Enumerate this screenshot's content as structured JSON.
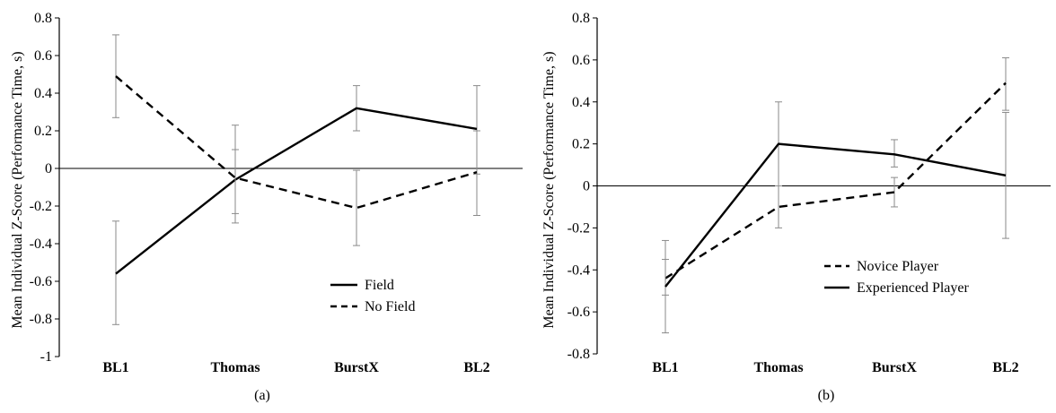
{
  "chart_data": [
    {
      "type": "line",
      "panel_label": "(a)",
      "ylabel": "Mean Individual Z-Score (Performance Time, s)",
      "categories": [
        "BL1",
        "Thomas",
        "BurstX",
        "BL2"
      ],
      "ylim": [
        -1,
        0.8
      ],
      "yticks": [
        0.8,
        0.6,
        0.4,
        0.2,
        0,
        -0.2,
        -0.4,
        -0.6,
        -0.8,
        -1
      ],
      "ytick_labels": [
        "0.8",
        "0.6",
        "0.4",
        "0.2",
        "0",
        "-0.2",
        "-0.4",
        "-0.6",
        "-0.8",
        "-1"
      ],
      "grid": false,
      "zero_line": true,
      "legend_position": "lower-right",
      "series": [
        {
          "name": "Field",
          "dash": "solid",
          "values": [
            -0.56,
            -0.06,
            0.32,
            0.21
          ],
          "err_low": [
            -0.83,
            -0.29,
            0.2,
            -0.03
          ],
          "err_high": [
            -0.28,
            0.1,
            0.44,
            0.44
          ]
        },
        {
          "name": "No Field",
          "dash": "dashed",
          "values": [
            0.49,
            -0.05,
            -0.21,
            -0.02
          ],
          "err_low": [
            0.27,
            -0.24,
            -0.41,
            -0.25
          ],
          "err_high": [
            0.71,
            0.23,
            -0.01,
            0.2
          ]
        }
      ]
    },
    {
      "type": "line",
      "panel_label": "(b)",
      "ylabel": "Mean Individual Z-Score (Performance Time, s)",
      "categories": [
        "BL1",
        "Thomas",
        "BurstX",
        "BL2"
      ],
      "ylim": [
        -0.8,
        0.8
      ],
      "yticks": [
        0.8,
        0.6,
        0.4,
        0.2,
        0,
        -0.2,
        -0.4,
        -0.6,
        -0.8
      ],
      "ytick_labels": [
        "0.8",
        "0.6",
        "0.4",
        "0.2",
        "0",
        "-0.2",
        "-0.4",
        "-0.6",
        "-0.8"
      ],
      "grid": false,
      "zero_line": true,
      "legend_position": "lower-right",
      "series": [
        {
          "name": "Novice Player",
          "dash": "dashed",
          "values": [
            -0.44,
            -0.1,
            -0.03,
            0.49
          ],
          "err_low": [
            -0.52,
            -0.2,
            -0.1,
            0.36
          ],
          "err_high": [
            -0.35,
            0.0,
            0.04,
            0.61
          ]
        },
        {
          "name": "Experienced Player",
          "dash": "solid",
          "values": [
            -0.48,
            0.2,
            0.15,
            0.05
          ],
          "err_low": [
            -0.7,
            0.0,
            0.09,
            -0.25
          ],
          "err_high": [
            -0.26,
            0.4,
            0.22,
            0.35
          ]
        }
      ]
    }
  ]
}
